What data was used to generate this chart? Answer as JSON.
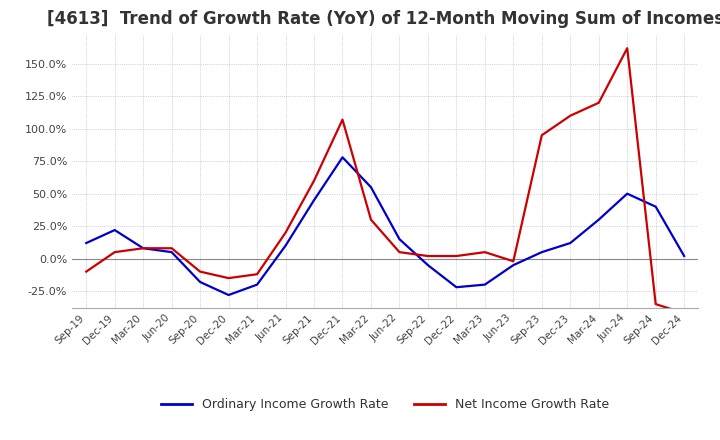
{
  "title": "[4613]  Trend of Growth Rate (YoY) of 12-Month Moving Sum of Incomes",
  "title_fontsize": 12,
  "background_color": "#ffffff",
  "grid_color": "#aaaacc",
  "x_labels": [
    "Sep-19",
    "Dec-19",
    "Mar-20",
    "Jun-20",
    "Sep-20",
    "Dec-20",
    "Mar-21",
    "Jun-21",
    "Sep-21",
    "Dec-21",
    "Mar-22",
    "Jun-22",
    "Sep-22",
    "Dec-22",
    "Mar-23",
    "Jun-23",
    "Sep-23",
    "Dec-23",
    "Mar-24",
    "Jun-24",
    "Sep-24",
    "Dec-24"
  ],
  "ordinary_income": [
    0.12,
    0.22,
    0.08,
    0.05,
    -0.18,
    -0.28,
    -0.2,
    0.1,
    0.45,
    0.78,
    0.55,
    0.15,
    -0.05,
    -0.22,
    -0.2,
    -0.05,
    0.05,
    0.12,
    0.3,
    0.5,
    0.4,
    0.02
  ],
  "net_income": [
    -0.1,
    0.05,
    0.08,
    0.08,
    -0.1,
    -0.15,
    -0.12,
    0.2,
    0.6,
    1.07,
    0.3,
    0.05,
    0.02,
    0.02,
    0.05,
    -0.02,
    0.95,
    1.1,
    1.2,
    1.62,
    -0.35,
    -0.42
  ],
  "ordinary_color": "#0000cc",
  "net_color": "#cc0000",
  "ylim": [
    -0.38,
    1.72
  ],
  "yticks": [
    -0.25,
    0.0,
    0.25,
    0.5,
    0.75,
    1.0,
    1.25,
    1.5
  ],
  "legend_labels": [
    "Ordinary Income Growth Rate",
    "Net Income Growth Rate"
  ],
  "line_width": 1.6
}
